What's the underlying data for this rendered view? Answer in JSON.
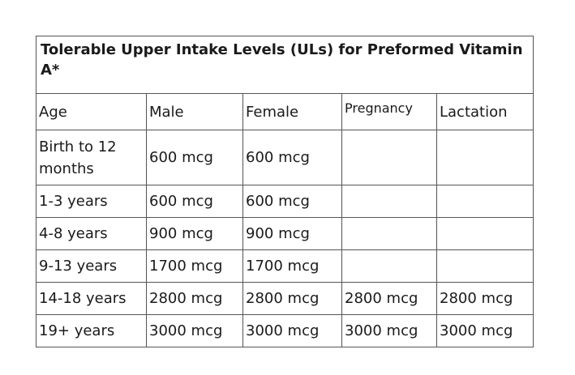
{
  "title": "Tolerable Upper Intake Levels (ULs) for Preformed Vitamin A*",
  "table": {
    "header": [
      "Age",
      "Male",
      "Female",
      "Pregnancy",
      "Lactation"
    ],
    "rows": [
      [
        "Birth to 12 months",
        "600 mcg",
        "600 mcg",
        null,
        null
      ],
      [
        "1-3 years",
        "600 mcg",
        "600 mcg",
        null,
        null
      ],
      [
        "4-8 years",
        "900 mcg",
        "900 mcg",
        null,
        null
      ],
      [
        "9-13 years",
        "1700 mcg",
        "1700 mcg",
        null,
        null
      ],
      [
        "14-18 years",
        "2800 mcg",
        "2800 mcg",
        "2800 mcg",
        "2800 mcg"
      ],
      [
        "19+ years",
        "3000 mcg",
        "3000 mcg",
        "3000 mcg",
        "3000 mcg"
      ]
    ]
  }
}
